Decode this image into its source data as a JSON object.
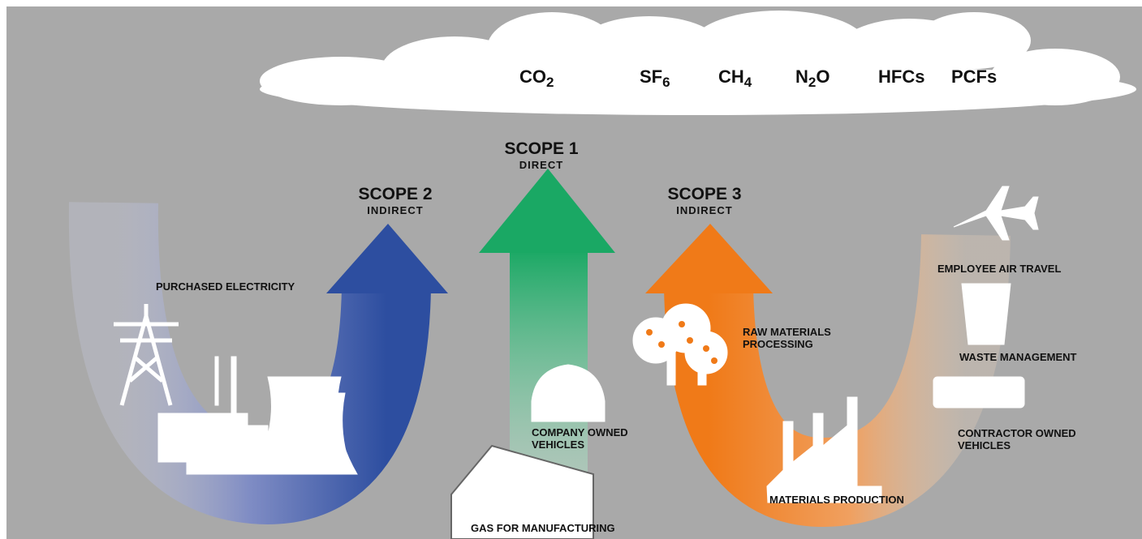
{
  "gases": [
    {
      "base": "CO",
      "sub": "2"
    },
    {
      "base": "SF",
      "sub": "6"
    },
    {
      "base": "CH",
      "sub": "4"
    },
    {
      "base": "N",
      "sub": "2",
      "rest": "O"
    },
    {
      "base": "HFCs"
    },
    {
      "base": "PCFs"
    }
  ],
  "scopes": [
    {
      "title": "SCOPE 1",
      "subtitle": "DIRECT"
    },
    {
      "title": "SCOPE 2",
      "subtitle": "INDIRECT"
    },
    {
      "title": "SCOPE 3",
      "subtitle": "INDIRECT"
    }
  ],
  "labels": {
    "purchased_electricity": [
      "PURCHASED ELECTRICITY"
    ],
    "company_vehicles": [
      "COMPANY OWNED",
      "VEHICLES"
    ],
    "gas_manufacturing": [
      "GAS FOR MANUFACTURING"
    ],
    "raw_materials": [
      "RAW MATERIALS",
      "PROCESSING"
    ],
    "materials_production": [
      "MATERIALS PRODUCTION"
    ],
    "employee_air_travel": [
      "EMPLOYEE AIR TRAVEL"
    ],
    "waste_management": [
      "WASTE MANAGEMENT"
    ],
    "contractor_vehicles": [
      "CONTRACTOR OWNED",
      "VEHICLES"
    ]
  }
}
